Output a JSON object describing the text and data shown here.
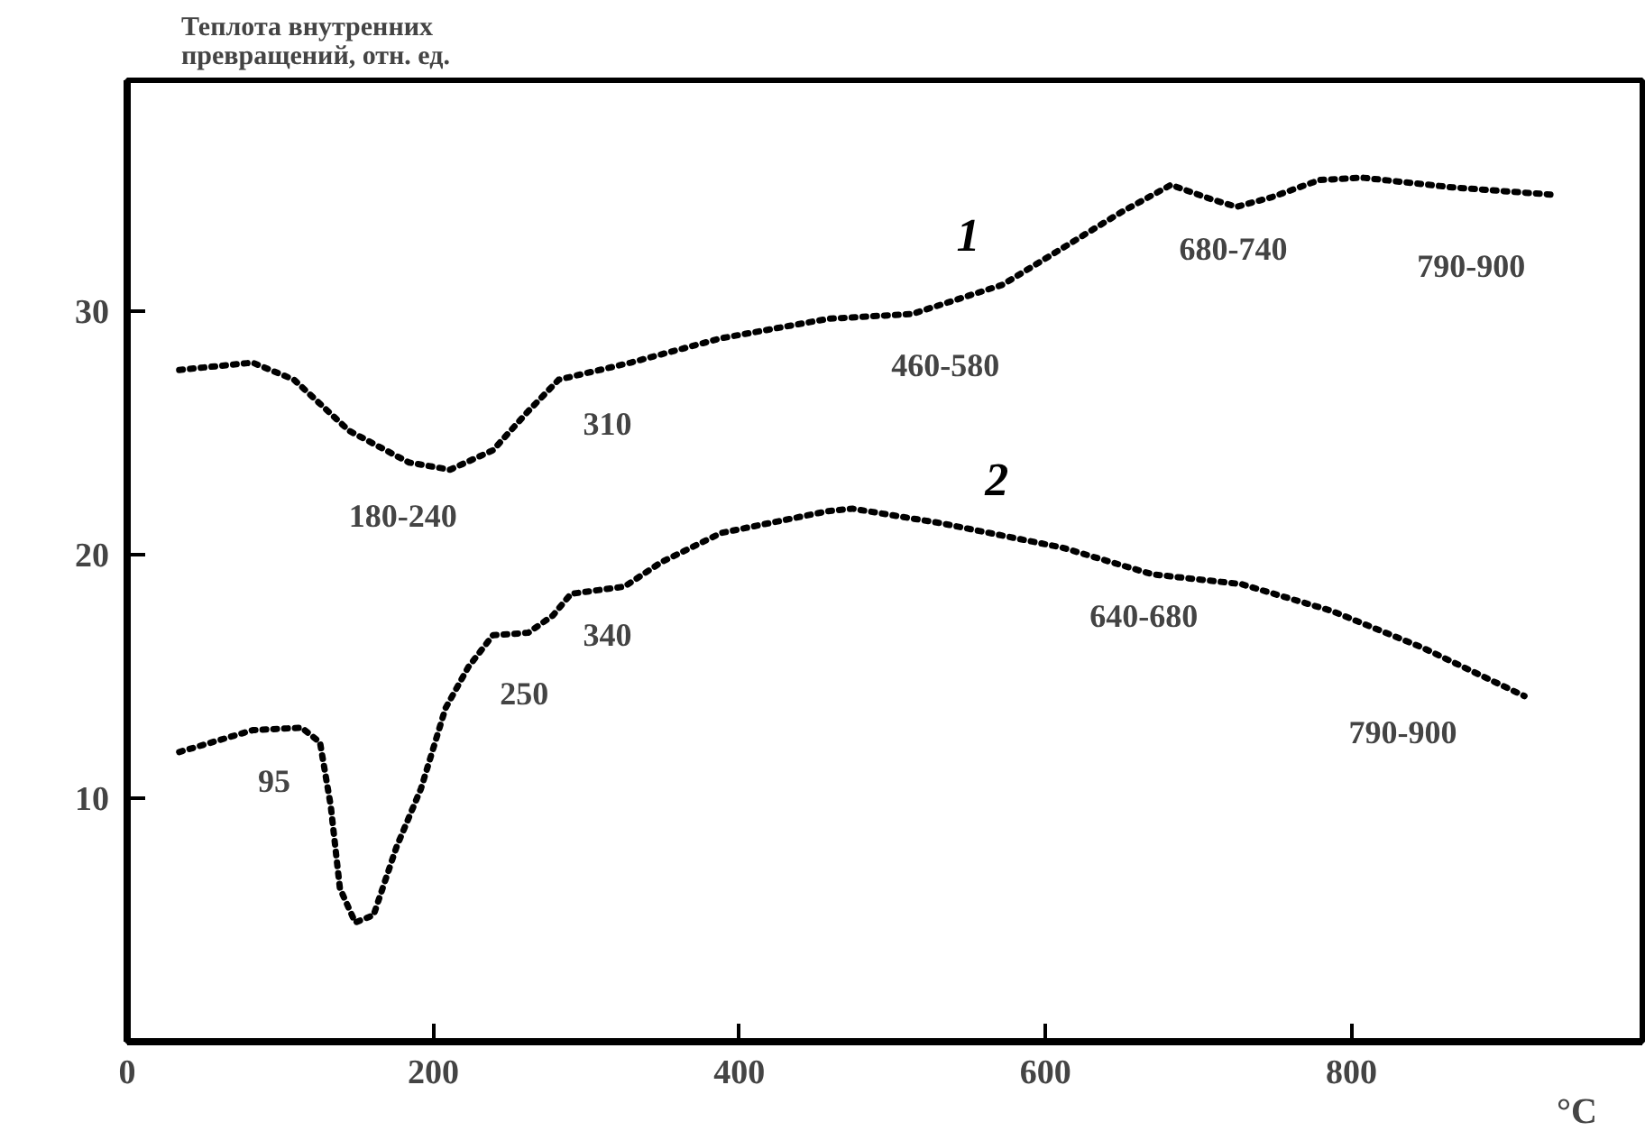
{
  "chart_data": {
    "type": "line",
    "ylabel": "Теплота внутренних\nпревращений, отн. ед.",
    "xlabel": "°C",
    "xlim": [
      0,
      990
    ],
    "ylim": [
      0,
      39.5
    ],
    "xticks": [
      0,
      200,
      400,
      600,
      800
    ],
    "yticks": [
      10,
      20,
      30
    ],
    "grid": false,
    "marker": "none",
    "line_style": "dotted",
    "series": [
      {
        "name": "1",
        "color": "#000000",
        "x": [
          34,
          82,
          109,
          145,
          184,
          211,
          239,
          262,
          282,
          329,
          388,
          458,
          513,
          572,
          611,
          650,
          682,
          709,
          725,
          748,
          779,
          807,
          866,
          931
        ],
        "values": [
          27.6,
          27.9,
          27.2,
          25.1,
          23.8,
          23.5,
          24.3,
          25.9,
          27.2,
          27.9,
          28.9,
          29.7,
          29.9,
          31.1,
          32.6,
          34.1,
          35.2,
          34.6,
          34.3,
          34.7,
          35.4,
          35.5,
          35.1,
          34.8
        ]
      },
      {
        "name": "2",
        "color": "#000000",
        "x": [
          34,
          82,
          114,
          126,
          133,
          139,
          149,
          161,
          176,
          192,
          208,
          223,
          239,
          262,
          278,
          290,
          325,
          349,
          388,
          458,
          474,
          532,
          611,
          670,
          728,
          787,
          846,
          913
        ],
        "values": [
          11.9,
          12.8,
          12.9,
          12.3,
          9.7,
          6.3,
          4.9,
          5.2,
          8.0,
          10.4,
          13.7,
          15.4,
          16.7,
          16.8,
          17.5,
          18.4,
          18.7,
          19.7,
          20.9,
          21.8,
          21.9,
          21.3,
          20.3,
          19.2,
          18.8,
          17.7,
          16.2,
          14.2
        ]
      }
    ],
    "annotations": [
      "180-240",
      "310",
      "460-580",
      "680-740",
      "790-900",
      "95",
      "250",
      "340",
      "640-680",
      "790-900"
    ]
  }
}
